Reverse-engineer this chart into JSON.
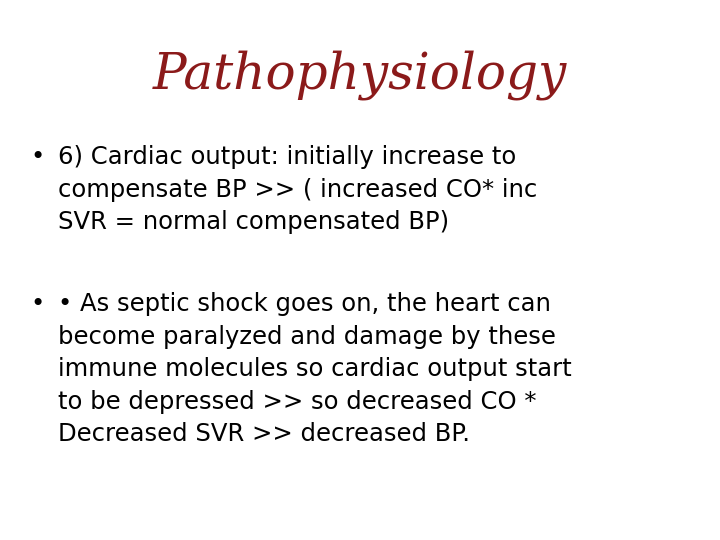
{
  "title": "Pathophysiology",
  "title_color": "#8B1A1A",
  "title_fontsize": 36,
  "title_font": "serif",
  "background_color": "#FFFFFF",
  "bullet1_text": "6) Cardiac output: initially increase to\ncompensate BP >> ( increased CO* inc\nSVR = normal compensated BP)",
  "bullet2_text": "• As septic shock goes on, the heart can\nbecome paralyzed and damage by these\nimmune molecules so cardiac output start\nto be depressed >> so decreased CO *\nDecreased SVR >> decreased BP.",
  "bullet_color": "#000000",
  "bullet_fontsize": 17.5,
  "bullet_font": "DejaVu Sans",
  "bullet_marker": "•",
  "figsize": [
    7.2,
    5.4
  ],
  "dpi": 100
}
